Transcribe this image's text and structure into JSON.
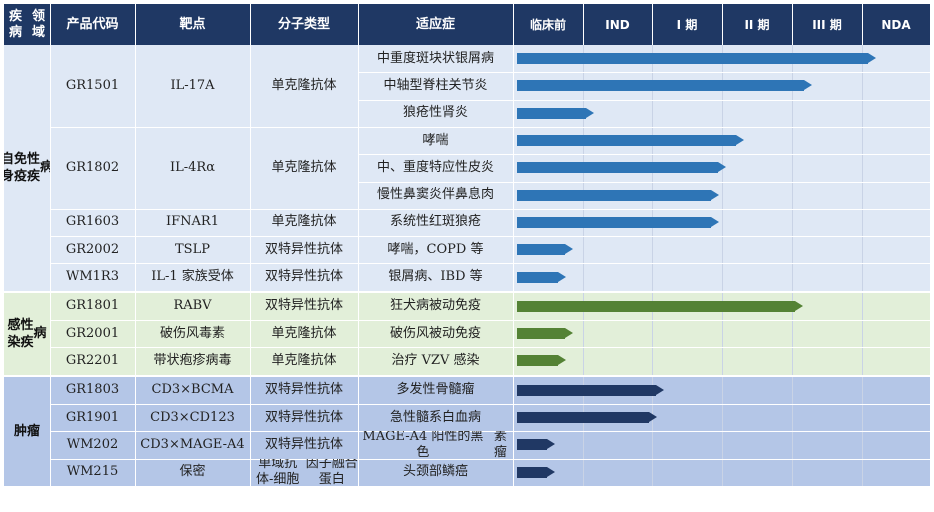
{
  "headers": [
    "疾病领域",
    "产品代码",
    "靶点",
    "分子类型",
    "适应症",
    "临床前",
    "IND",
    "I 期",
    "II 期",
    "III 期",
    "NDA"
  ],
  "stages": [
    "临床前",
    "IND",
    "I 期",
    "II 期",
    "III 期",
    "NDA"
  ],
  "colors": {
    "header_bg": "#1f3864",
    "autoimmune_bg": "#dfe8f5",
    "infectious_bg": "#e2efd9",
    "oncology_bg": "#b4c6e7",
    "autoimmune_bar": "#2e75b6",
    "infectious_bar": "#548235",
    "oncology_bar": "#203864",
    "grid_line": "#c9d3e6"
  },
  "areas": [
    {
      "name": "自身免疫性疾病",
      "display": [
        "自身",
        "免疫",
        "性疾",
        "病"
      ],
      "bar_color_key": "autoimmune_bar",
      "bg_key": "autoimmune_bg",
      "products": [
        {
          "code": "GR1501",
          "target": "IL-17A",
          "type": [
            "单克隆抗体"
          ],
          "indications": [
            {
              "label": [
                "中重度斑块状银屑病"
              ],
              "progress": 5.15
            },
            {
              "label": [
                "中轴型脊柱关节炎"
              ],
              "progress": 4.23
            },
            {
              "label": [
                "狼疮性肾炎"
              ],
              "progress": 1.1
            }
          ]
        },
        {
          "code": "GR1802",
          "target": "IL-4Rα",
          "type": [
            "单克隆抗体"
          ],
          "indications": [
            {
              "label": [
                "哮喘"
              ],
              "progress": 3.25
            },
            {
              "label": [
                "中、重度特应性皮炎"
              ],
              "progress": 3.0
            },
            {
              "label": [
                "慢性鼻窦炎伴鼻息肉"
              ],
              "progress": 2.9
            }
          ]
        },
        {
          "code": "GR1603",
          "target": "IFNAR1",
          "type": [
            "单克隆抗体"
          ],
          "indications": [
            {
              "label": [
                "系统性红斑狼疮"
              ],
              "progress": 2.9
            }
          ]
        },
        {
          "code": "GR2002",
          "target": "TSLP",
          "type": [
            "双特异性抗体"
          ],
          "indications": [
            {
              "label": [
                "哮喘，COPD 等"
              ],
              "progress": 0.8
            }
          ]
        },
        {
          "code": "WM1R3",
          "target": "IL-1 家族受体",
          "type": [
            "双特异性抗体"
          ],
          "indications": [
            {
              "label": [
                "银屑病、IBD 等"
              ],
              "progress": 0.7
            }
          ]
        }
      ]
    },
    {
      "name": "感染性疾病",
      "display": [
        "感染",
        "性疾",
        "病"
      ],
      "bar_color_key": "infectious_bar",
      "bg_key": "infectious_bg",
      "products": [
        {
          "code": "GR1801",
          "target": "RABV",
          "type": [
            "双特异性抗体"
          ],
          "indications": [
            {
              "label": [
                "狂犬病被动免疫"
              ],
              "progress": 4.1
            }
          ]
        },
        {
          "code": "GR2001",
          "target": "破伤风毒素",
          "type": [
            "单克隆抗体"
          ],
          "indications": [
            {
              "label": [
                "破伤风被动免疫"
              ],
              "progress": 0.8
            }
          ]
        },
        {
          "code": "GR2201",
          "target": "带状疱疹病毒",
          "type": [
            "单克隆抗体"
          ],
          "indications": [
            {
              "label": [
                "治疗 VZV 感染"
              ],
              "progress": 0.7
            }
          ]
        }
      ]
    },
    {
      "name": "肿瘤",
      "display": [
        "肿瘤"
      ],
      "bar_color_key": "oncology_bar",
      "bg_key": "oncology_bg",
      "products": [
        {
          "code": "GR1803",
          "target": "CD3×BCMA",
          "type": [
            "双特异性抗体"
          ],
          "indications": [
            {
              "label": [
                "多发性骨髓瘤"
              ],
              "progress": 2.1
            }
          ]
        },
        {
          "code": "GR1901",
          "target": "CD3×CD123",
          "type": [
            "双特异性抗体"
          ],
          "indications": [
            {
              "label": [
                "急性髓系白血病"
              ],
              "progress": 2.0
            }
          ]
        },
        {
          "code": "WM202",
          "target": "CD3×MAGE-A4",
          "type": [
            "双特异性抗体"
          ],
          "indications": [
            {
              "label": [
                "MAGE-A4 阳性的黑色",
                "素瘤"
              ],
              "progress": 0.55
            }
          ]
        },
        {
          "code": "WM215",
          "target": "保密",
          "type": [
            "单域抗体-细胞",
            "因子融合蛋白"
          ],
          "indications": [
            {
              "label": [
                "头颈部鳞癌"
              ],
              "progress": 0.55
            }
          ]
        }
      ]
    }
  ]
}
